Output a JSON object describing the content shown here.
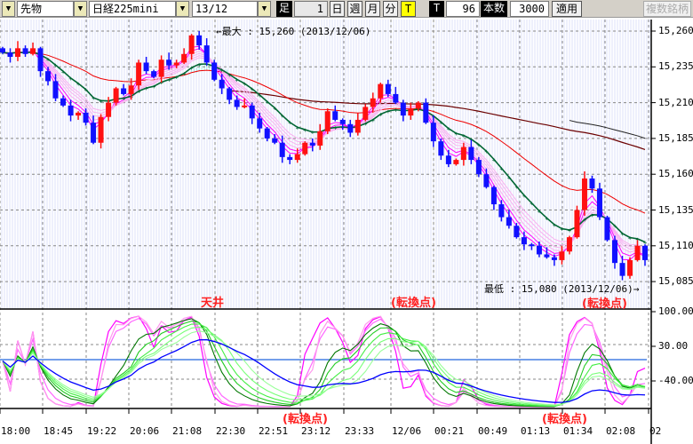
{
  "toolbar": {
    "type": "先物",
    "symbol": "日経225mini",
    "contract": "13/12",
    "ashi_label": "足",
    "ashi_value": "1",
    "periods": [
      "日",
      "週",
      "月",
      "分",
      "T"
    ],
    "t_label": "T",
    "t_value": "96",
    "count_label": "本数",
    "count_value": "3000",
    "apply": "適用",
    "multi": "複数銘柄"
  },
  "chart_data": {
    "type": "candlestick",
    "price_axis": {
      "ticks": [
        "15,260",
        "15,235",
        "15,210",
        "15,185",
        "15,160",
        "15,135",
        "15,110",
        "15,085"
      ],
      "range": [
        15069,
        15266
      ]
    },
    "osc_axis": {
      "ticks": [
        "100.00",
        "30.00",
        "-40.00"
      ]
    },
    "time_labels": [
      "18:00",
      "18:45",
      "19:22",
      "20:06",
      "21:08",
      "22:30",
      "22:51",
      "23:12",
      "23:33",
      "12/06",
      "00:21",
      "00:49",
      "01:13",
      "01:34",
      "02:08",
      "02"
    ],
    "closes": [
      15245,
      15242,
      15248,
      15244,
      15248,
      15232,
      15225,
      15213,
      15208,
      15201,
      15203,
      15196,
      15182,
      15200,
      15210,
      15220,
      15216,
      15222,
      15238,
      15232,
      15228,
      15240,
      15236,
      15238,
      15244,
      15257,
      15250,
      15238,
      15226,
      15220,
      15212,
      15207,
      15208,
      15199,
      15192,
      15185,
      15182,
      15172,
      15170,
      15174,
      15182,
      15180,
      15190,
      15204,
      15198,
      15195,
      15189,
      15198,
      15207,
      15213,
      15223,
      15216,
      15210,
      15201,
      15206,
      15210,
      15196,
      15183,
      15173,
      15167,
      15170,
      15179,
      15170,
      15160,
      15151,
      15139,
      15130,
      15124,
      15116,
      15111,
      15110,
      15104,
      15102,
      15100,
      15106,
      15116,
      15135,
      15157,
      15150,
      15130,
      15114,
      15098,
      15089,
      15100,
      15110,
      15100
    ],
    "max_note": "←最大 : 15,260 (2013/12/06)",
    "min_note": "最低 : 15,080 (2013/12/06)→",
    "annotations": {
      "top": "天井",
      "turn1": "(転換点)",
      "turn2": "(転換点)",
      "osc_turn1": "(転換点)",
      "osc_turn2": "(転換点)"
    }
  }
}
